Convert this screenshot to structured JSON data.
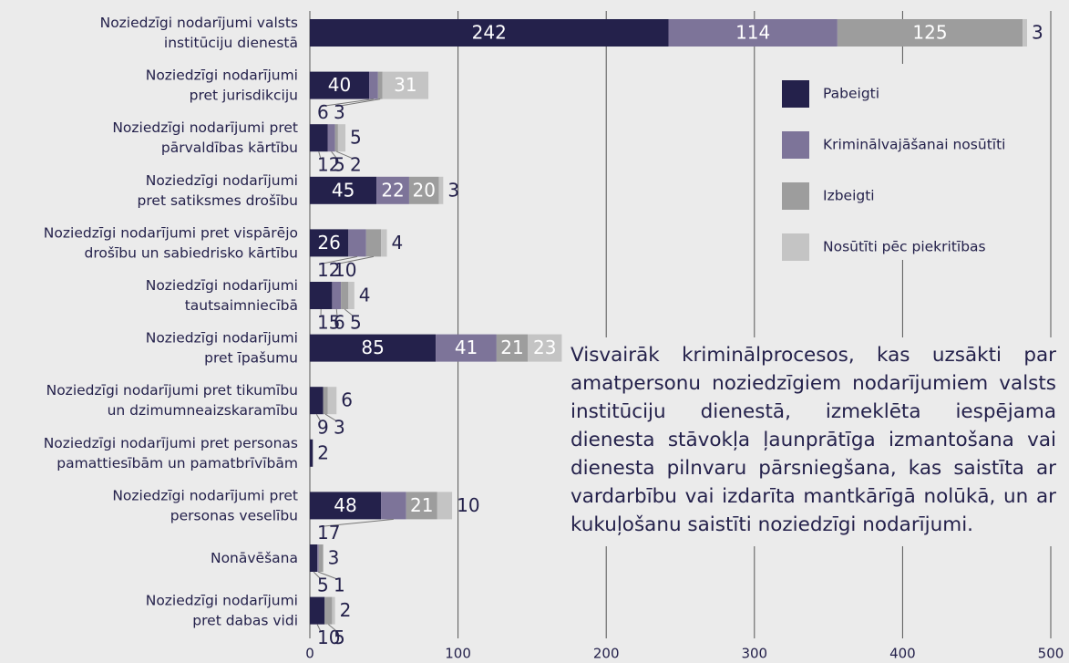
{
  "chart_data": {
    "type": "stacked-bar-horizontal",
    "categories": [
      "Noziedzīgi nodarījumi valsts\ninstitūciju dienestā",
      "Noziedzīgi nodarījumi\npret jurisdikciju",
      "Noziedzīgi nodarījumi pret\npārvaldības kārtību",
      "Noziedzīgi nodarījumi\npret satiksmes drošību",
      "Noziedzīgi nodarījumi pret vispārējo\ndrošību un sabiedrisko kārtību",
      "Noziedzīgi nodarījumi\ntautsaimniecībā",
      "Noziedzīgi nodarījumi\npret īpašumu",
      "Noziedzīgi nodarījumi pret tikumību\nun dzimumneaizskaramību",
      "Noziedzīgi nodarījumi pret personas\npamattiesībām un pamatbrīvībām",
      "Noziedzīgi nodarījumi pret\npersonas veselību",
      "Nonāvēšana",
      "Noziedzīgi nodarījumi\npret dabas vidi"
    ],
    "series": [
      {
        "name": "Pabeigti",
        "color": "#24214b",
        "values": [
          242,
          40,
          12,
          45,
          26,
          15,
          85,
          9,
          2,
          48,
          5,
          10
        ]
      },
      {
        "name": "Kriminālvajāšanai nosūtīti",
        "color": "#7d7499",
        "values": [
          114,
          6,
          5,
          22,
          12,
          6,
          41,
          0,
          0,
          17,
          1,
          0
        ]
      },
      {
        "name": "Izbeigti",
        "color": "#9d9d9d",
        "values": [
          125,
          3,
          2,
          20,
          10,
          5,
          21,
          3,
          0,
          21,
          3,
          5
        ]
      },
      {
        "name": "Nosūtīti pēc piekritības",
        "color": "#c4c4c4",
        "values": [
          3,
          31,
          5,
          3,
          4,
          4,
          23,
          6,
          0,
          10,
          0,
          2
        ]
      }
    ],
    "xlim": [
      0,
      500
    ],
    "xticks": [
      0,
      100,
      200,
      300,
      400,
      500
    ],
    "grid": true,
    "annotation": "Visvairāk kriminālprocesos, kas uzsākti par amatpersonu noziedzīgiem nodarījumiem valsts institūciju dienestā, izmeklēta iespējama dienesta stāvokļa ļaunprātīga izmantošana vai dienesta pilnvaru pārsniegšana, kas saistīta ar vardarbību vai izdarīta mantkārīgā nolūkā, un ar kukuļošanu saistīti noziedzīgi nodarījumi."
  }
}
